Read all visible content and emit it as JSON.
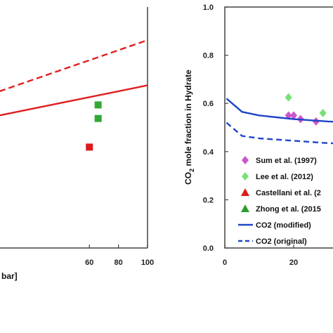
{
  "chart_data": [
    {
      "type": "scatter",
      "title": "",
      "xlabel": "bar]",
      "ylabel": "",
      "xlim": [
        -2,
        100
      ],
      "xticks": [
        60,
        80,
        100
      ],
      "series": [
        {
          "kind": "line",
          "style": "dashed",
          "color": "#e02020",
          "x": [
            -2,
            100
          ],
          "y": [
            0.62,
            0.79
          ]
        },
        {
          "kind": "line",
          "style": "solid",
          "color": "#e02020",
          "x": [
            -2,
            100
          ],
          "y": [
            0.54,
            0.64
          ]
        },
        {
          "kind": "marker",
          "marker": "square",
          "color": "#dd1a1a",
          "x": [
            60
          ],
          "y": [
            0.435
          ]
        },
        {
          "kind": "marker",
          "marker": "square",
          "color": "#33a833",
          "x": [
            66,
            66
          ],
          "y": [
            0.575,
            0.53
          ]
        }
      ]
    },
    {
      "type": "scatter",
      "title": "",
      "xlabel": "",
      "ylabel": "CO₂ mole fraction in Hydrate",
      "xlim": [
        0,
        50
      ],
      "ylim": [
        0,
        1
      ],
      "xticks": [
        0,
        20
      ],
      "yticks": [
        "0.0",
        "0.2",
        "0.4",
        "0.6",
        "0.8",
        "1.0"
      ],
      "legend_position": "bottom-right",
      "series": [
        {
          "name": "Sum et al. (1997)",
          "marker": "diamond",
          "color": "#cc55cc",
          "x": [
            18.5,
            20,
            22,
            26.5
          ],
          "y": [
            0.55,
            0.55,
            0.535,
            0.525
          ]
        },
        {
          "name": "Lee et al. (2012)",
          "marker": "diamond",
          "color": "#77e077",
          "x": [
            18.5,
            28.5
          ],
          "y": [
            0.625,
            0.56
          ]
        },
        {
          "name": "Castellani et al. (2",
          "marker": "triangle",
          "color": "#dd1a1a",
          "x": [],
          "y": []
        },
        {
          "name": "Zhong et al. (2015",
          "marker": "triangle",
          "color": "#2e9e2e",
          "x": [],
          "y": []
        },
        {
          "name": "CO2 (modified)",
          "style": "solid",
          "color": "#2045c8",
          "x": [
            0.5,
            5,
            10,
            20,
            30,
            50
          ],
          "y": [
            0.62,
            0.565,
            0.55,
            0.535,
            0.525,
            0.515
          ]
        },
        {
          "name": "CO2 (original)",
          "style": "dashed",
          "color": "#2045c8",
          "x": [
            0.5,
            5,
            10,
            20,
            30,
            50
          ],
          "y": [
            0.52,
            0.465,
            0.455,
            0.445,
            0.435,
            0.43
          ]
        }
      ]
    }
  ]
}
